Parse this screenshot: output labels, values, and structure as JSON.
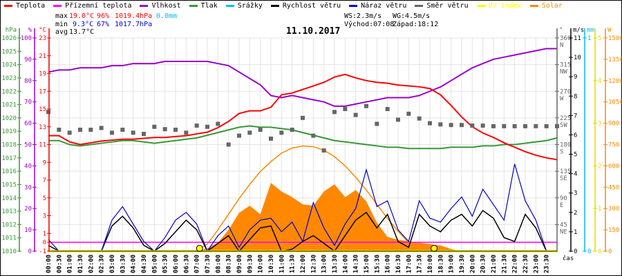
{
  "legend": [
    {
      "label": "Teplota",
      "color": "#ff0000"
    },
    {
      "label": "Přízemní teplota",
      "color": "#ff00ff"
    },
    {
      "label": "Vlhkost",
      "color": "#9900cc"
    },
    {
      "label": "Tlak",
      "color": "#339933"
    },
    {
      "label": "Srážky",
      "color": "#00bbee"
    },
    {
      "label": "Rychlost větru",
      "color": "#000000"
    },
    {
      "label": "Náraz větru",
      "color": "#0000cc"
    },
    {
      "label": "Směr větru",
      "color": "#666666"
    },
    {
      "label": "UV index",
      "color": "#ffff00"
    },
    {
      "label": "Solar",
      "color": "#ff8800"
    }
  ],
  "stats": {
    "max_label": "max",
    "max_temp": "19.0°C",
    "max_hum": "96%",
    "max_press": "1019.4hPa",
    "max_rain": "0.0mm",
    "min_label": "min",
    "min_temp": "9.3°C",
    "min_hum": "67%",
    "min_press": "1017.7hPa",
    "avg_label": "avg",
    "avg_temp": "13.7°C",
    "ws": "WS:2.3m/s",
    "wg": "WG:4.5m/s",
    "sunrise": "Východ:07:08",
    "sunset": "Západ:18:12"
  },
  "colors": {
    "temp": "#ff0000",
    "ground": "#ff00ff",
    "hum": "#9900cc",
    "press": "#339933",
    "rain": "#00bbee",
    "wind": "#000000",
    "gust": "#0000cc",
    "dir": "#666666",
    "uv": "#ffff00",
    "solar": "#ff8800",
    "grid": "#e6e2e2"
  },
  "chart_data": {
    "type": "line",
    "title": "11.10.2017",
    "xlabel": "čas",
    "x": [
      "00:00",
      "00:30",
      "01:00",
      "01:30",
      "02:00",
      "02:30",
      "03:00",
      "03:30",
      "04:00",
      "04:30",
      "05:00",
      "05:30",
      "06:00",
      "06:30",
      "07:00",
      "07:30",
      "08:00",
      "08:30",
      "09:00",
      "09:30",
      "10:00",
      "10:30",
      "11:00",
      "11:30",
      "12:00",
      "12:30",
      "13:00",
      "13:30",
      "14:00",
      "14:30",
      "15:00",
      "15:30",
      "16:00",
      "16:30",
      "17:00",
      "17:30",
      "18:00",
      "18:30",
      "19:00",
      "19:30",
      "20:00",
      "20:30",
      "21:00",
      "21:30",
      "22:00",
      "22:30",
      "23:00",
      "23:30",
      "24:00"
    ],
    "axes": {
      "press": {
        "unit": "hPa",
        "range": [
          1010,
          1026
        ],
        "ticks": [
          1010,
          1011,
          1012,
          1013,
          1014,
          1015,
          1016,
          1017,
          1018,
          1019,
          1020,
          1021,
          1022,
          1023,
          1024,
          1025,
          1026
        ]
      },
      "hum": {
        "unit": "%",
        "range": [
          0,
          100
        ],
        "ticks": [
          0,
          10,
          20,
          30,
          40,
          50,
          60,
          70,
          80,
          90,
          100
        ]
      },
      "temp": {
        "unit": "°C",
        "range": [
          -1,
          23
        ],
        "ticks": [
          -1,
          0,
          1,
          3,
          5,
          7,
          9,
          11,
          13,
          15,
          17,
          19,
          21,
          23
        ]
      },
      "dir": {
        "unit": "°",
        "range": [
          0,
          360
        ],
        "ticks": [
          45,
          90,
          135,
          180,
          225,
          270,
          315,
          360
        ],
        "tick_names": [
          "NE",
          "E",
          "SE",
          "S",
          "SW",
          "W",
          "NW",
          "N"
        ]
      },
      "wind": {
        "unit": "m/s",
        "range": [
          0,
          11
        ],
        "ticks": [
          0,
          1,
          2,
          3,
          4,
          5,
          6,
          7,
          8,
          9,
          10,
          11
        ]
      },
      "rain": {
        "unit": "mm",
        "range": [
          0,
          1
        ],
        "ticks": [
          0,
          1
        ]
      },
      "uv": {
        "unit": "",
        "range": [
          0,
          5
        ],
        "ticks": [
          0,
          1,
          2,
          3,
          4,
          5
        ]
      },
      "solar": {
        "unit": "W",
        "range": [
          0,
          1500
        ],
        "ticks": [
          0,
          150,
          300,
          450,
          600,
          750,
          900,
          1050,
          1200,
          1350,
          1500
        ]
      }
    },
    "series": [
      {
        "name": "Teplota",
        "axis": "temp",
        "values": [
          12.0,
          12.0,
          11.3,
          11.0,
          11.2,
          11.4,
          11.5,
          11.6,
          11.6,
          11.7,
          11.8,
          11.8,
          11.9,
          12.0,
          12.2,
          12.4,
          12.9,
          13.6,
          14.5,
          14.8,
          14.8,
          15.2,
          16.6,
          16.8,
          17.2,
          17.6,
          18.0,
          18.6,
          18.9,
          18.5,
          18.2,
          18.0,
          17.9,
          17.7,
          17.6,
          17.5,
          17.3,
          16.6,
          15.4,
          14.1,
          13.0,
          12.3,
          11.8,
          11.2,
          10.7,
          10.2,
          9.8,
          9.5,
          9.3
        ]
      },
      {
        "name": "Přízemní teplota",
        "axis": "temp",
        "values": [
          0,
          0,
          0,
          0,
          0,
          0,
          0,
          0,
          0,
          0,
          0,
          0,
          0,
          0,
          0,
          0,
          0,
          0,
          0,
          0,
          0,
          0,
          0,
          0,
          0,
          0,
          0,
          0,
          0,
          0,
          0,
          0,
          0,
          0,
          0,
          0,
          0,
          0,
          0,
          0,
          0,
          0,
          0,
          0,
          0,
          0,
          0,
          0,
          0
        ]
      },
      {
        "name": "Vlhkost",
        "axis": "hum",
        "values": [
          84,
          85,
          85,
          86,
          86,
          86,
          87,
          87,
          88,
          88,
          88,
          89,
          89,
          89,
          89,
          89,
          88,
          87,
          84,
          81,
          78,
          73,
          72,
          73,
          72,
          71,
          70,
          68,
          68,
          69,
          70,
          71,
          72,
          72,
          72,
          73,
          75,
          77,
          80,
          83,
          86,
          88,
          90,
          91,
          92,
          93,
          94,
          95,
          95
        ]
      },
      {
        "name": "Tlak",
        "axis": "press",
        "values": [
          1018.3,
          1018.3,
          1018.0,
          1017.9,
          1018.0,
          1018.1,
          1018.2,
          1018.3,
          1018.3,
          1018.2,
          1018.1,
          1018.2,
          1018.3,
          1018.4,
          1018.5,
          1018.7,
          1018.9,
          1019.1,
          1019.3,
          1019.4,
          1019.3,
          1019.3,
          1019.2,
          1019.1,
          1018.9,
          1018.7,
          1018.5,
          1018.3,
          1018.2,
          1018.1,
          1018.0,
          1017.9,
          1017.8,
          1017.8,
          1017.7,
          1017.7,
          1017.7,
          1017.7,
          1017.8,
          1017.8,
          1017.8,
          1017.9,
          1017.9,
          1018.0,
          1018.0,
          1018.1,
          1018.2,
          1018.3,
          1018.5
        ]
      },
      {
        "name": "Srážky",
        "axis": "rain",
        "values": [
          0,
          0,
          0,
          0,
          0,
          0,
          0,
          0,
          0,
          0,
          0,
          0,
          0,
          0,
          0,
          0,
          0,
          0,
          0,
          0,
          0,
          0,
          0,
          0,
          0,
          0,
          0,
          0,
          0,
          0,
          0,
          0,
          0,
          0,
          0,
          0,
          0,
          0,
          0,
          0,
          0,
          0,
          0,
          0,
          0,
          0,
          0,
          0,
          0
        ]
      },
      {
        "name": "Rychlost větru",
        "axis": "wind",
        "values": [
          0.3,
          0,
          0,
          0,
          0,
          0,
          1.3,
          1.8,
          1.2,
          0.3,
          0,
          0.4,
          1.0,
          1.6,
          1.1,
          0,
          0.4,
          0.8,
          0,
          0.6,
          1.2,
          1.3,
          0,
          0.1,
          0.5,
          0.8,
          0.4,
          0,
          0.8,
          1.6,
          2.0,
          1.2,
          1.9,
          0.5,
          0.2,
          1.9,
          1.3,
          1.0,
          1.6,
          1.9,
          1.3,
          2.1,
          1.7,
          0.7,
          0.5,
          1.9,
          1.2,
          0,
          0
        ]
      },
      {
        "name": "Náraz větru",
        "axis": "wind",
        "values": [
          0.6,
          0,
          0,
          0,
          0,
          0,
          1.6,
          2.3,
          1.4,
          0.5,
          0,
          0.7,
          1.6,
          2.0,
          1.4,
          0,
          0.8,
          1.3,
          0.2,
          1.1,
          1.6,
          1.7,
          1.0,
          1.5,
          0.5,
          2.5,
          1.2,
          0.3,
          1.4,
          2.2,
          4.2,
          2.3,
          2.6,
          1.1,
          0.5,
          2.6,
          1.7,
          1.5,
          2.2,
          2.8,
          1.8,
          3.2,
          2.4,
          1.6,
          4.5,
          2.6,
          1.6,
          0,
          0
        ]
      },
      {
        "name": "Směr větru",
        "axis": "dir",
        "values": [
          235,
          205,
          200,
          205,
          205,
          208,
          200,
          205,
          200,
          198,
          210,
          206,
          205,
          200,
          212,
          210,
          215,
          180,
          195,
          200,
          205,
          190,
          200,
          205,
          225,
          195,
          170,
          235,
          240,
          230,
          245,
          215,
          240,
          222,
          232,
          224,
          216,
          214,
          213,
          213,
          212,
          212,
          211,
          211,
          211,
          211,
          211,
          211,
          211
        ]
      },
      {
        "name": "UV index",
        "axis": "uv",
        "values": [
          0,
          0,
          0,
          0,
          0,
          0,
          0,
          0,
          0,
          0,
          0,
          0,
          0,
          0,
          0,
          0,
          0,
          0,
          0,
          0,
          0,
          0,
          0,
          0,
          0,
          0,
          0,
          0,
          0,
          0,
          0,
          0,
          0,
          0,
          0,
          0,
          0,
          0,
          0,
          0,
          0,
          0,
          0,
          0,
          0,
          0,
          0,
          0,
          0
        ]
      },
      {
        "name": "Solar",
        "axis": "solar",
        "values": [
          0,
          0,
          0,
          0,
          0,
          0,
          0,
          0,
          0,
          0,
          0,
          0,
          0,
          0,
          0,
          20,
          60,
          150,
          270,
          320,
          260,
          480,
          420,
          380,
          330,
          320,
          420,
          470,
          380,
          430,
          350,
          200,
          100,
          80,
          70,
          60,
          50,
          40,
          15,
          0,
          0,
          0,
          0,
          0,
          0,
          0,
          0,
          0,
          0
        ]
      },
      {
        "name": "Solar max",
        "axis": "solar",
        "values": [
          0,
          0,
          0,
          0,
          0,
          0,
          0,
          0,
          0,
          0,
          0,
          0,
          0,
          0,
          0,
          50,
          150,
          260,
          370,
          470,
          560,
          630,
          690,
          725,
          740,
          735,
          710,
          665,
          600,
          520,
          430,
          330,
          230,
          140,
          60,
          20,
          5,
          0,
          0,
          0,
          0,
          0,
          0,
          0,
          0,
          0,
          0,
          0,
          0
        ]
      }
    ],
    "markers": [
      {
        "label": "Východ",
        "time": "07:08"
      },
      {
        "label": "Západ",
        "time": "18:12"
      }
    ]
  }
}
